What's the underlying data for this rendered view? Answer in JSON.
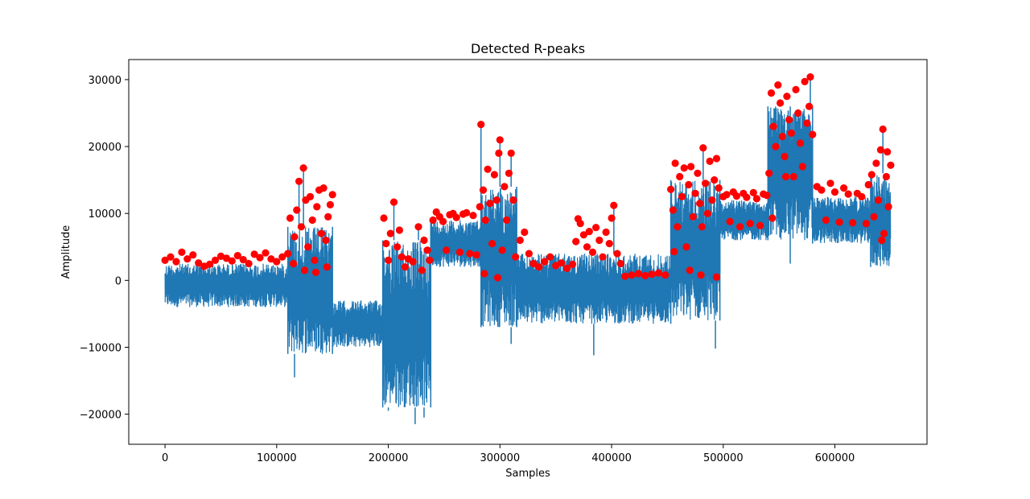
{
  "chart_data": {
    "type": "line",
    "title": "Detected R-peaks",
    "xlabel": "Samples",
    "ylabel": "Amplitude",
    "xlim": [
      -32500,
      682500
    ],
    "ylim": [
      -24500,
      33000
    ],
    "x_ticks": [
      0,
      100000,
      200000,
      300000,
      400000,
      500000,
      600000
    ],
    "x_tick_labels": [
      "0",
      "100000",
      "200000",
      "300000",
      "400000",
      "500000",
      "600000"
    ],
    "y_ticks": [
      -20000,
      -10000,
      0,
      10000,
      20000,
      30000
    ],
    "y_tick_labels": [
      "−20000",
      "−10000",
      "0",
      "10000",
      "20000",
      "30000"
    ],
    "grid": false,
    "legend": "none",
    "colors": {
      "signal": "#1f77b4",
      "peaks": "#ff0000"
    },
    "series": [
      {
        "kind": "signal-envelope",
        "segments": [
          {
            "x": [
              0,
              110000
            ],
            "upper": 2500,
            "lower": -4000
          },
          {
            "x": [
              110000,
              150000
            ],
            "upper": 8000,
            "lower": -11000
          },
          {
            "x": [
              150000,
              195000
            ],
            "upper": -3000,
            "lower": -10000
          },
          {
            "x": [
              195000,
              238000
            ],
            "upper": 6000,
            "lower": -19000
          },
          {
            "x": [
              238000,
              283000
            ],
            "upper": 9000,
            "lower": 2000
          },
          {
            "x": [
              283000,
              315000
            ],
            "upper": 14000,
            "lower": -7000
          },
          {
            "x": [
              315000,
              453000
            ],
            "upper": 4000,
            "lower": -6500
          },
          {
            "x": [
              453000,
              497000
            ],
            "upper": 15000,
            "lower": -6000
          },
          {
            "x": [
              497000,
              540000
            ],
            "upper": 12000,
            "lower": 6000
          },
          {
            "x": [
              540000,
              580000
            ],
            "upper": 26000,
            "lower": 6000
          },
          {
            "x": [
              580000,
              632000
            ],
            "upper": 12500,
            "lower": 5500
          },
          {
            "x": [
              632000,
              650000
            ],
            "upper": 16000,
            "lower": 2000
          }
        ],
        "spikes": [
          {
            "x": 124000,
            "y": 16800
          },
          {
            "x": 120000,
            "y": 14800
          },
          {
            "x": 205000,
            "y": 11700
          },
          {
            "x": 227000,
            "y": 8000
          },
          {
            "x": 283000,
            "y": 23300
          },
          {
            "x": 300000,
            "y": 21000
          },
          {
            "x": 310000,
            "y": 19000
          },
          {
            "x": 402000,
            "y": 11200
          },
          {
            "x": 482000,
            "y": 19800
          },
          {
            "x": 578000,
            "y": 30400
          },
          {
            "x": 643000,
            "y": 22600
          },
          {
            "x": 116000,
            "y": -14500
          },
          {
            "x": 200000,
            "y": -19500
          },
          {
            "x": 224000,
            "y": -21500
          },
          {
            "x": 232000,
            "y": -20500
          },
          {
            "x": 310000,
            "y": -9500
          },
          {
            "x": 384000,
            "y": -11200
          },
          {
            "x": 493000,
            "y": -10200
          },
          {
            "x": 560000,
            "y": 2500
          }
        ]
      },
      {
        "kind": "r-peaks",
        "points": [
          [
            0,
            3000
          ],
          [
            5000,
            3500
          ],
          [
            10000,
            2800
          ],
          [
            15000,
            4200
          ],
          [
            20000,
            3200
          ],
          [
            25000,
            3800
          ],
          [
            30000,
            2600
          ],
          [
            35000,
            2100
          ],
          [
            40000,
            2400
          ],
          [
            45000,
            3000
          ],
          [
            50000,
            3600
          ],
          [
            55000,
            3300
          ],
          [
            60000,
            2900
          ],
          [
            65000,
            3700
          ],
          [
            70000,
            3100
          ],
          [
            75000,
            2500
          ],
          [
            80000,
            3900
          ],
          [
            85000,
            3400
          ],
          [
            90000,
            4100
          ],
          [
            95000,
            3200
          ],
          [
            100000,
            2800
          ],
          [
            105000,
            3500
          ],
          [
            110000,
            4000
          ],
          [
            112000,
            9300
          ],
          [
            116000,
            6500
          ],
          [
            118000,
            10500
          ],
          [
            120000,
            14800
          ],
          [
            122000,
            8000
          ],
          [
            124000,
            16800
          ],
          [
            126000,
            12000
          ],
          [
            128000,
            5000
          ],
          [
            130000,
            12500
          ],
          [
            132000,
            9000
          ],
          [
            134000,
            3000
          ],
          [
            136000,
            11000
          ],
          [
            138000,
            13500
          ],
          [
            140000,
            7000
          ],
          [
            142000,
            13800
          ],
          [
            144000,
            6000
          ],
          [
            146000,
            9500
          ],
          [
            148000,
            11300
          ],
          [
            150000,
            12800
          ],
          [
            115000,
            2500
          ],
          [
            125000,
            1500
          ],
          [
            135000,
            1200
          ],
          [
            145000,
            2000
          ],
          [
            196000,
            9300
          ],
          [
            198000,
            5500
          ],
          [
            200000,
            3000
          ],
          [
            202000,
            7000
          ],
          [
            205000,
            11700
          ],
          [
            208000,
            5000
          ],
          [
            210000,
            7500
          ],
          [
            212000,
            3500
          ],
          [
            215000,
            2000
          ],
          [
            218000,
            3200
          ],
          [
            222000,
            2800
          ],
          [
            227000,
            8000
          ],
          [
            230000,
            1500
          ],
          [
            232000,
            6000
          ],
          [
            235000,
            4500
          ],
          [
            237000,
            3000
          ],
          [
            240000,
            9000
          ],
          [
            243000,
            10200
          ],
          [
            246000,
            9500
          ],
          [
            249000,
            8800
          ],
          [
            252000,
            4500
          ],
          [
            255000,
            9800
          ],
          [
            258000,
            10000
          ],
          [
            261000,
            9400
          ],
          [
            264000,
            4200
          ],
          [
            267000,
            9900
          ],
          [
            270000,
            10100
          ],
          [
            273000,
            4000
          ],
          [
            276000,
            9700
          ],
          [
            279000,
            3800
          ],
          [
            282000,
            11000
          ],
          [
            283000,
            23300
          ],
          [
            285000,
            13500
          ],
          [
            287000,
            9000
          ],
          [
            289000,
            16600
          ],
          [
            291000,
            11500
          ],
          [
            293000,
            5500
          ],
          [
            295000,
            15800
          ],
          [
            297000,
            12000
          ],
          [
            299000,
            19000
          ],
          [
            300000,
            21000
          ],
          [
            302000,
            4500
          ],
          [
            304000,
            14000
          ],
          [
            306000,
            9000
          ],
          [
            308000,
            16000
          ],
          [
            310000,
            19000
          ],
          [
            312000,
            12000
          ],
          [
            314000,
            3500
          ],
          [
            286000,
            1000
          ],
          [
            298000,
            400
          ],
          [
            318000,
            6000
          ],
          [
            322000,
            7200
          ],
          [
            326000,
            4000
          ],
          [
            330000,
            2500
          ],
          [
            335000,
            2000
          ],
          [
            340000,
            2800
          ],
          [
            345000,
            3500
          ],
          [
            350000,
            2200
          ],
          [
            355000,
            2600
          ],
          [
            360000,
            1800
          ],
          [
            365000,
            2400
          ],
          [
            368000,
            5800
          ],
          [
            370000,
            9200
          ],
          [
            372000,
            8500
          ],
          [
            375000,
            6800
          ],
          [
            378000,
            5000
          ],
          [
            380000,
            7300
          ],
          [
            383000,
            4200
          ],
          [
            386000,
            7900
          ],
          [
            389000,
            6000
          ],
          [
            392000,
            3500
          ],
          [
            395000,
            7200
          ],
          [
            398000,
            5500
          ],
          [
            400000,
            9300
          ],
          [
            402000,
            11200
          ],
          [
            405000,
            4000
          ],
          [
            408000,
            2500
          ],
          [
            412000,
            600
          ],
          [
            418000,
            800
          ],
          [
            424000,
            1000
          ],
          [
            430000,
            700
          ],
          [
            436000,
            900
          ],
          [
            442000,
            1100
          ],
          [
            448000,
            800
          ],
          [
            453000,
            13600
          ],
          [
            455000,
            10500
          ],
          [
            457000,
            17500
          ],
          [
            459000,
            8000
          ],
          [
            461000,
            15500
          ],
          [
            463000,
            12500
          ],
          [
            465000,
            16800
          ],
          [
            467000,
            5000
          ],
          [
            469000,
            14300
          ],
          [
            471000,
            17000
          ],
          [
            473000,
            9500
          ],
          [
            475000,
            13000
          ],
          [
            477000,
            16000
          ],
          [
            479000,
            11500
          ],
          [
            481000,
            8000
          ],
          [
            482000,
            19800
          ],
          [
            484000,
            14500
          ],
          [
            486000,
            10000
          ],
          [
            488000,
            17800
          ],
          [
            490000,
            12000
          ],
          [
            492000,
            15000
          ],
          [
            494000,
            18200
          ],
          [
            496000,
            13800
          ],
          [
            456000,
            4300
          ],
          [
            470000,
            1500
          ],
          [
            480000,
            800
          ],
          [
            494000,
            500
          ],
          [
            500000,
            12500
          ],
          [
            503000,
            12800
          ],
          [
            506000,
            8800
          ],
          [
            509000,
            13200
          ],
          [
            512000,
            12600
          ],
          [
            515000,
            8000
          ],
          [
            518000,
            13000
          ],
          [
            521000,
            12400
          ],
          [
            524000,
            8500
          ],
          [
            527000,
            13100
          ],
          [
            530000,
            12200
          ],
          [
            533000,
            8200
          ],
          [
            536000,
            12900
          ],
          [
            539000,
            12700
          ],
          [
            541000,
            16000
          ],
          [
            543000,
            28000
          ],
          [
            545000,
            23000
          ],
          [
            547000,
            20000
          ],
          [
            549000,
            29200
          ],
          [
            551000,
            26500
          ],
          [
            553000,
            21500
          ],
          [
            555000,
            18500
          ],
          [
            557000,
            27500
          ],
          [
            559000,
            24000
          ],
          [
            561000,
            22000
          ],
          [
            563000,
            15500
          ],
          [
            565000,
            28500
          ],
          [
            567000,
            25000
          ],
          [
            569000,
            20500
          ],
          [
            571000,
            17000
          ],
          [
            573000,
            29700
          ],
          [
            575000,
            23500
          ],
          [
            577000,
            26000
          ],
          [
            578000,
            30400
          ],
          [
            580000,
            21800
          ],
          [
            544000,
            9300
          ],
          [
            556000,
            15500
          ],
          [
            584000,
            14000
          ],
          [
            588000,
            13500
          ],
          [
            592000,
            9000
          ],
          [
            596000,
            14500
          ],
          [
            600000,
            13200
          ],
          [
            604000,
            8700
          ],
          [
            608000,
            13800
          ],
          [
            612000,
            12900
          ],
          [
            616000,
            8600
          ],
          [
            620000,
            13000
          ],
          [
            624000,
            12500
          ],
          [
            628000,
            8500
          ],
          [
            630000,
            14300
          ],
          [
            633000,
            15800
          ],
          [
            635000,
            9500
          ],
          [
            637000,
            17500
          ],
          [
            639000,
            12000
          ],
          [
            641000,
            19500
          ],
          [
            643000,
            22600
          ],
          [
            644000,
            7000
          ],
          [
            646000,
            15500
          ],
          [
            647000,
            19200
          ],
          [
            648000,
            11000
          ],
          [
            650000,
            17200
          ],
          [
            642000,
            6000
          ]
        ]
      }
    ]
  }
}
